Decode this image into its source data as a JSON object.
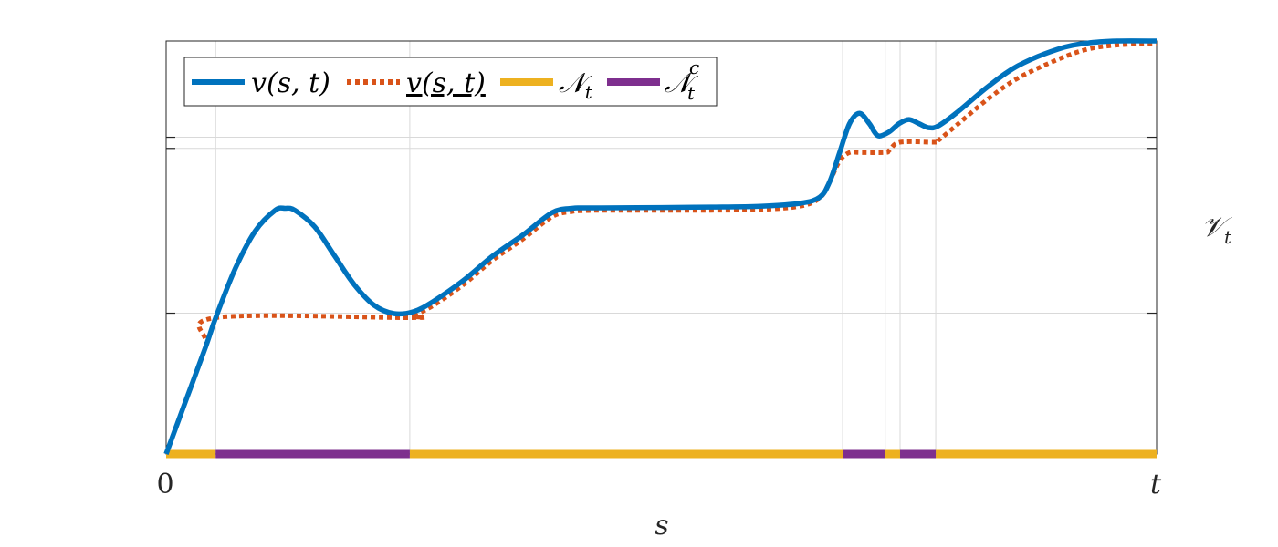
{
  "chart_data": {
    "type": "line",
    "xlabel": "s",
    "ylabel": "𝒱",
    "ylabel_sub": "t",
    "x_ticks": [
      {
        "value": 0,
        "label": "0"
      },
      {
        "value": 1,
        "label": "t"
      }
    ],
    "x_gridlines": [
      0.05,
      0.246,
      0.683,
      0.726,
      0.741,
      0.777
    ],
    "y_gridlines": [
      0.341,
      0.74,
      0.767
    ],
    "xlim": [
      0,
      1
    ],
    "ylim": [
      0,
      1
    ],
    "grid": true,
    "legend_position": "top-left",
    "colors": {
      "v": "#0072BD",
      "v_lower": "#D95319",
      "N": "#EDB120",
      "Nc": "#7E2F8E",
      "grid": "#D9D9D9",
      "axis": "#262626"
    },
    "series": [
      {
        "name": "v(s,t)",
        "legend_label": "v(s, t)",
        "style": "solid",
        "x": [
          0,
          0.02,
          0.04,
          0.05,
          0.07,
          0.09,
          0.11,
          0.12,
          0.13,
          0.15,
          0.17,
          0.19,
          0.21,
          0.23,
          0.25,
          0.27,
          0.3,
          0.33,
          0.36,
          0.39,
          0.41,
          0.42,
          0.44,
          0.5,
          0.55,
          0.6,
          0.64,
          0.66,
          0.67,
          0.68,
          0.69,
          0.7,
          0.71,
          0.715,
          0.72,
          0.73,
          0.74,
          0.75,
          0.76,
          0.77,
          0.78,
          0.8,
          0.83,
          0.86,
          0.9,
          0.93,
          0.96,
          1.0
        ],
        "y": [
          0,
          0.13,
          0.26,
          0.33,
          0.45,
          0.54,
          0.59,
          0.595,
          0.59,
          0.55,
          0.48,
          0.41,
          0.36,
          0.34,
          0.345,
          0.37,
          0.42,
          0.48,
          0.53,
          0.585,
          0.595,
          0.596,
          0.596,
          0.597,
          0.598,
          0.6,
          0.607,
          0.622,
          0.66,
          0.73,
          0.8,
          0.825,
          0.8,
          0.78,
          0.77,
          0.78,
          0.8,
          0.81,
          0.8,
          0.79,
          0.795,
          0.83,
          0.89,
          0.94,
          0.98,
          0.995,
          1.0,
          1.0
        ]
      },
      {
        "name": "v_(s,t)",
        "legend_label": "v(s, t)",
        "style": "dotted",
        "x": [
          0,
          0.02,
          0.04,
          0.05,
          0.246,
          0.25,
          0.27,
          0.3,
          0.33,
          0.36,
          0.39,
          0.41,
          0.42,
          0.44,
          0.5,
          0.55,
          0.6,
          0.64,
          0.66,
          0.67,
          0.68,
          0.69,
          0.7,
          0.726,
          0.73,
          0.741,
          0.777,
          0.78,
          0.8,
          0.83,
          0.86,
          0.9,
          0.93,
          0.96,
          1.0
        ],
        "y": [
          0,
          0.13,
          0.26,
          0.33,
          0.33,
          0.335,
          0.36,
          0.41,
          0.47,
          0.52,
          0.575,
          0.587,
          0.589,
          0.59,
          0.59,
          0.59,
          0.592,
          0.6,
          0.62,
          0.66,
          0.71,
          0.73,
          0.73,
          0.73,
          0.735,
          0.755,
          0.755,
          0.76,
          0.8,
          0.86,
          0.91,
          0.955,
          0.98,
          0.99,
          0.995
        ]
      }
    ],
    "intervals": [
      {
        "name": "N",
        "legend_label": "𝒩",
        "legend_sub": "t",
        "sup": "",
        "ranges": [
          [
            0,
            0.05
          ],
          [
            0.246,
            0.683
          ],
          [
            0.726,
            0.741
          ],
          [
            0.777,
            1.0
          ]
        ]
      },
      {
        "name": "Nc",
        "legend_label": "𝒩",
        "legend_sub": "t",
        "sup": "c",
        "ranges": [
          [
            0.05,
            0.246
          ],
          [
            0.683,
            0.726
          ],
          [
            0.741,
            0.777
          ]
        ]
      }
    ]
  }
}
